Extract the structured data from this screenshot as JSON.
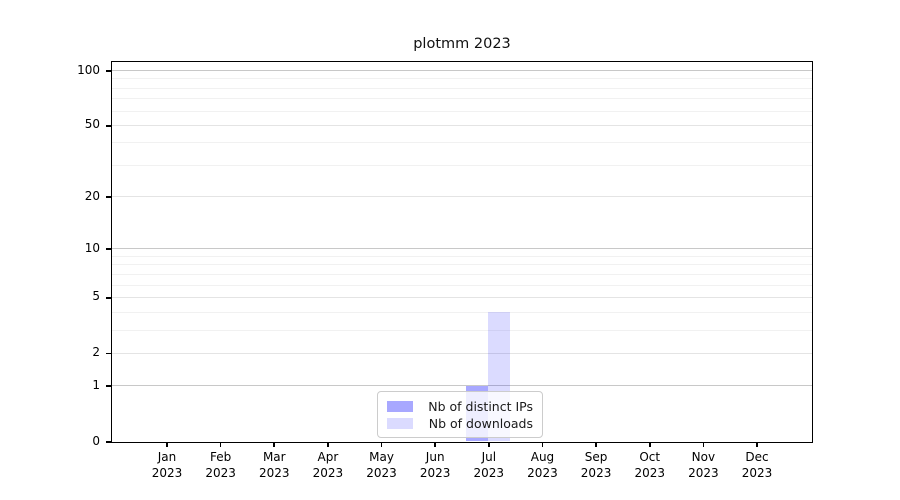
{
  "figure": {
    "background": "#ffffff"
  },
  "chart_data": {
    "type": "bar",
    "title": "plotmm 2023",
    "categories": [
      "Jan 2023",
      "Feb 2023",
      "Mar 2023",
      "Apr 2023",
      "May 2023",
      "Jun 2023",
      "Jul 2023",
      "Aug 2023",
      "Sep 2023",
      "Oct 2023",
      "Nov 2023",
      "Dec 2023"
    ],
    "x_tick_months": [
      "Jan",
      "Feb",
      "Mar",
      "Apr",
      "May",
      "Jun",
      "Jul",
      "Aug",
      "Sep",
      "Oct",
      "Nov",
      "Dec"
    ],
    "x_tick_year": "2023",
    "series": [
      {
        "name": "Nb of distinct IPs",
        "base_color": "#0000ff",
        "alpha": 0.34,
        "rendered_color": "#a9a9ff",
        "values": [
          0,
          0,
          0,
          0,
          0,
          0,
          1,
          0,
          0,
          0,
          0,
          0
        ]
      },
      {
        "name": "Nb of downloads",
        "base_color": "#0000ff",
        "alpha": 0.14,
        "rendered_color": "#dcdcff",
        "values": [
          0,
          0,
          0,
          0,
          0,
          0,
          4,
          0,
          0,
          0,
          0,
          0
        ]
      }
    ],
    "y_axis": {
      "scale": "log1p",
      "tick_labels": [
        0,
        1,
        2,
        5,
        10,
        20,
        50,
        100
      ],
      "minor_ticks": [
        3,
        4,
        6,
        7,
        8,
        9,
        30,
        40,
        60,
        70,
        80,
        90
      ],
      "decade_gridline_color": "#c8c8c8",
      "major_gridline_color": "#e4e4e4",
      "minor_gridline_color": "#f1f1f1",
      "range_min": 0,
      "range_max": 112
    },
    "legend": {
      "position": "lower center",
      "entries": [
        "Nb of distinct IPs",
        "Nb of downloads"
      ]
    },
    "grid": true,
    "xlabel": "",
    "ylabel": ""
  }
}
